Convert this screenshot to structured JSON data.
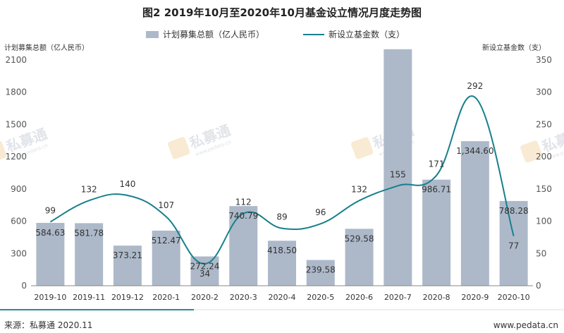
{
  "chart_data": {
    "type": "bar+line",
    "title": "图2  2019年10月至2020年10月基金设立情况月度走势图",
    "categories": [
      "2019-10",
      "2019-11",
      "2019-12",
      "2020-1",
      "2020-2",
      "2020-3",
      "2020-4",
      "2020-5",
      "2020-6",
      "2020-7",
      "2020-8",
      "2020-9",
      "2020-10"
    ],
    "series": [
      {
        "name": "计划募集总额（亿人民币）",
        "kind": "bar",
        "axis": "left",
        "color": "#adb9c9",
        "values": [
          584.63,
          581.78,
          373.21,
          512.47,
          272.24,
          740.79,
          418.5,
          239.58,
          529.58,
          2200,
          986.71,
          1344.6,
          788.28
        ],
        "labels": [
          "584.63",
          "581.78",
          "373.21",
          "512.47",
          "272.24",
          "740.79",
          "418.50",
          "239.58",
          "529.58",
          "",
          "986.71",
          "1,344.60",
          "788.28"
        ]
      },
      {
        "name": "新设立基金数（支）",
        "kind": "line",
        "axis": "right",
        "color": "#17808a",
        "values": [
          99,
          132,
          140,
          107,
          34,
          112,
          89,
          96,
          132,
          155,
          171,
          292,
          77
        ],
        "labels": [
          "99",
          "132",
          "140",
          "107",
          "34",
          "112",
          "89",
          "96",
          "132",
          "155",
          "171",
          "292",
          "77"
        ]
      }
    ],
    "y_left": {
      "label": "计划募集总额（亿人民币）",
      "lim": [
        0,
        2100
      ],
      "ticks": [
        "0",
        "300",
        "600",
        "900",
        "1200",
        "1500",
        "1800",
        "2100"
      ]
    },
    "y_right": {
      "label": "新设立基金数（支）",
      "lim": [
        0,
        350
      ],
      "ticks": [
        "0",
        "50",
        "100",
        "150",
        "200",
        "250",
        "300",
        "350"
      ]
    },
    "legend_position": "top-center",
    "grid": false
  },
  "footer": {
    "source": "来源：私募通 2020.11",
    "site": "www.pedata.cn"
  },
  "watermark": {
    "text": "私募通",
    "subtext": "www.pedata.cn"
  }
}
